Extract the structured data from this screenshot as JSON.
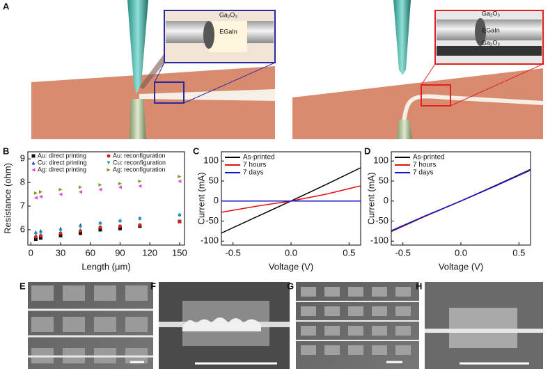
{
  "panel_labels": {
    "a": "A",
    "b": "B",
    "c": "C",
    "d": "D",
    "e": "E",
    "f": "F",
    "g": "G",
    "h": "H"
  },
  "insets": {
    "left": {
      "shell": "Ga₂O₃",
      "core": "EGaIn"
    },
    "right": {
      "shell_top": "Ga₂O₃",
      "core": "EGaIn",
      "shell_bottom": "Ga₂O₃"
    }
  },
  "chart_data": [
    {
      "type": "scatter",
      "xlabel": "Length (μm)",
      "ylabel": "Resistance (ohm)",
      "x": [
        5,
        10,
        30,
        50,
        70,
        90,
        110,
        150
      ],
      "xlim": [
        -3,
        155
      ],
      "xticks": [
        0,
        30,
        60,
        90,
        120,
        150
      ],
      "ylim": [
        5.35,
        9.3
      ],
      "yticks": [
        6,
        7,
        8,
        9
      ],
      "legend": "top",
      "series": [
        {
          "name": "Au: direct printing",
          "color": "#111111",
          "marker": "square",
          "values": [
            5.6,
            5.65,
            5.75,
            5.85,
            6.0,
            6.05,
            6.15,
            6.35
          ]
        },
        {
          "name": "Cu: direct printing",
          "color": "#1f3fd6",
          "marker": "triangle-up",
          "values": [
            5.9,
            5.95,
            6.05,
            6.2,
            6.3,
            6.4,
            6.5,
            6.65
          ]
        },
        {
          "name": "Ag: direct printing",
          "color": "#e040e0",
          "marker": "triangle-left",
          "values": [
            7.35,
            7.4,
            7.5,
            7.6,
            7.7,
            7.8,
            7.85,
            8.05
          ]
        },
        {
          "name": "Au: reconfiguration",
          "color": "#e02020",
          "marker": "circle",
          "values": [
            5.7,
            5.75,
            5.85,
            5.95,
            6.1,
            6.15,
            6.2,
            6.35
          ]
        },
        {
          "name": "Cu: reconfiguration",
          "color": "#1aa6b0",
          "marker": "triangle-down",
          "values": [
            5.8,
            5.85,
            5.95,
            6.1,
            6.25,
            6.35,
            6.45,
            6.6
          ]
        },
        {
          "name": "Ag: reconfiguration",
          "color": "#7a9a10",
          "marker": "triangle-right",
          "values": [
            7.55,
            7.6,
            7.7,
            7.8,
            7.9,
            7.95,
            8.05,
            8.25
          ]
        }
      ]
    },
    {
      "type": "line",
      "xlabel": "Voltage (V)",
      "ylabel": "Current (mA)",
      "x": [
        -0.6,
        -0.3,
        0,
        0.3,
        0.6
      ],
      "xlim": [
        -0.6,
        0.6
      ],
      "xticks": [
        -0.5,
        {
          "value": 0,
          "label": "0.0"
        },
        0.5
      ],
      "ylim": [
        -110,
        123
      ],
      "yticks": [
        -100,
        -50,
        0,
        50,
        100
      ],
      "legend": "top-left",
      "series": [
        {
          "name": "As-printed",
          "color": "#000000",
          "values": [
            -80,
            -40,
            0,
            41,
            83
          ]
        },
        {
          "name": "7 hours",
          "color": "#e01010",
          "values": [
            -28,
            -13,
            0,
            17,
            38
          ]
        },
        {
          "name": "7 days",
          "color": "#1010d0",
          "values": [
            0,
            0,
            0,
            0,
            0
          ]
        }
      ]
    },
    {
      "type": "line",
      "xlabel": "Voltage (V)",
      "ylabel": "Current (mA)",
      "x": [
        -0.6,
        -0.3,
        0,
        0.3,
        0.6
      ],
      "xlim": [
        -0.6,
        0.6
      ],
      "xticks": [
        -0.5,
        {
          "value": 0,
          "label": "0.0"
        },
        0.5
      ],
      "ylim": [
        -110,
        123
      ],
      "yticks": [
        -100,
        -50,
        0,
        50,
        100
      ],
      "legend": "top-left",
      "series": [
        {
          "name": "As-printed",
          "color": "#000000",
          "values": [
            -76,
            -37,
            0,
            39,
            79
          ]
        },
        {
          "name": "7 hours",
          "color": "#e01010",
          "values": [
            -75,
            -37,
            0,
            38,
            78
          ]
        },
        {
          "name": "7 days",
          "color": "#1010d0",
          "values": [
            -74,
            -36,
            0,
            38,
            77
          ]
        }
      ]
    }
  ]
}
